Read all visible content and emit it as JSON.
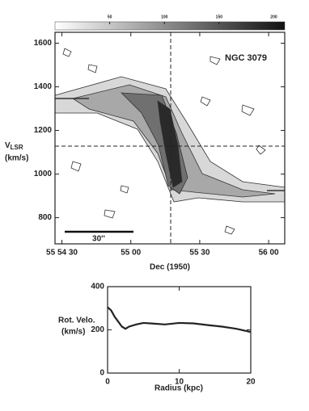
{
  "chart_data": [
    {
      "type": "contour",
      "label": "NGC 3079",
      "scalebar_label": "30''",
      "xlabel": "Dec (1950)",
      "ylabel_main": "V",
      "ylabel_sub": "LSR",
      "ylabel_unit": "(km/s)",
      "xlim": [
        27,
        127
      ],
      "xticks": [
        {
          "value": 30,
          "label": "55 54 30"
        },
        {
          "value": 60,
          "label": "55 00"
        },
        {
          "value": 90,
          "label": "55 30"
        },
        {
          "value": 120,
          "label": "56 00"
        }
      ],
      "ylim": [
        680,
        1650
      ],
      "yticks": [
        800,
        1000,
        1200,
        1400,
        1600
      ],
      "colorbar": {
        "lim": [
          0,
          210
        ],
        "ticks": [
          50,
          100,
          150,
          200
        ]
      }
    },
    {
      "type": "line",
      "ylabel": "Rot. Velo.",
      "ylabel_unit": "(km/s)",
      "xlabel": "Radius (kpc)",
      "x": [
        0,
        0.5,
        1,
        2,
        2.5,
        3,
        4,
        5,
        6,
        8,
        10,
        12,
        14,
        16,
        18,
        20
      ],
      "values": [
        305,
        290,
        260,
        215,
        205,
        215,
        225,
        232,
        230,
        225,
        232,
        230,
        222,
        215,
        205,
        190
      ],
      "color": "#222222",
      "xlim": [
        0,
        20
      ],
      "xticks": [
        0,
        10,
        20
      ],
      "ylim": [
        0,
        400
      ],
      "yticks": [
        0,
        200,
        400
      ]
    }
  ]
}
